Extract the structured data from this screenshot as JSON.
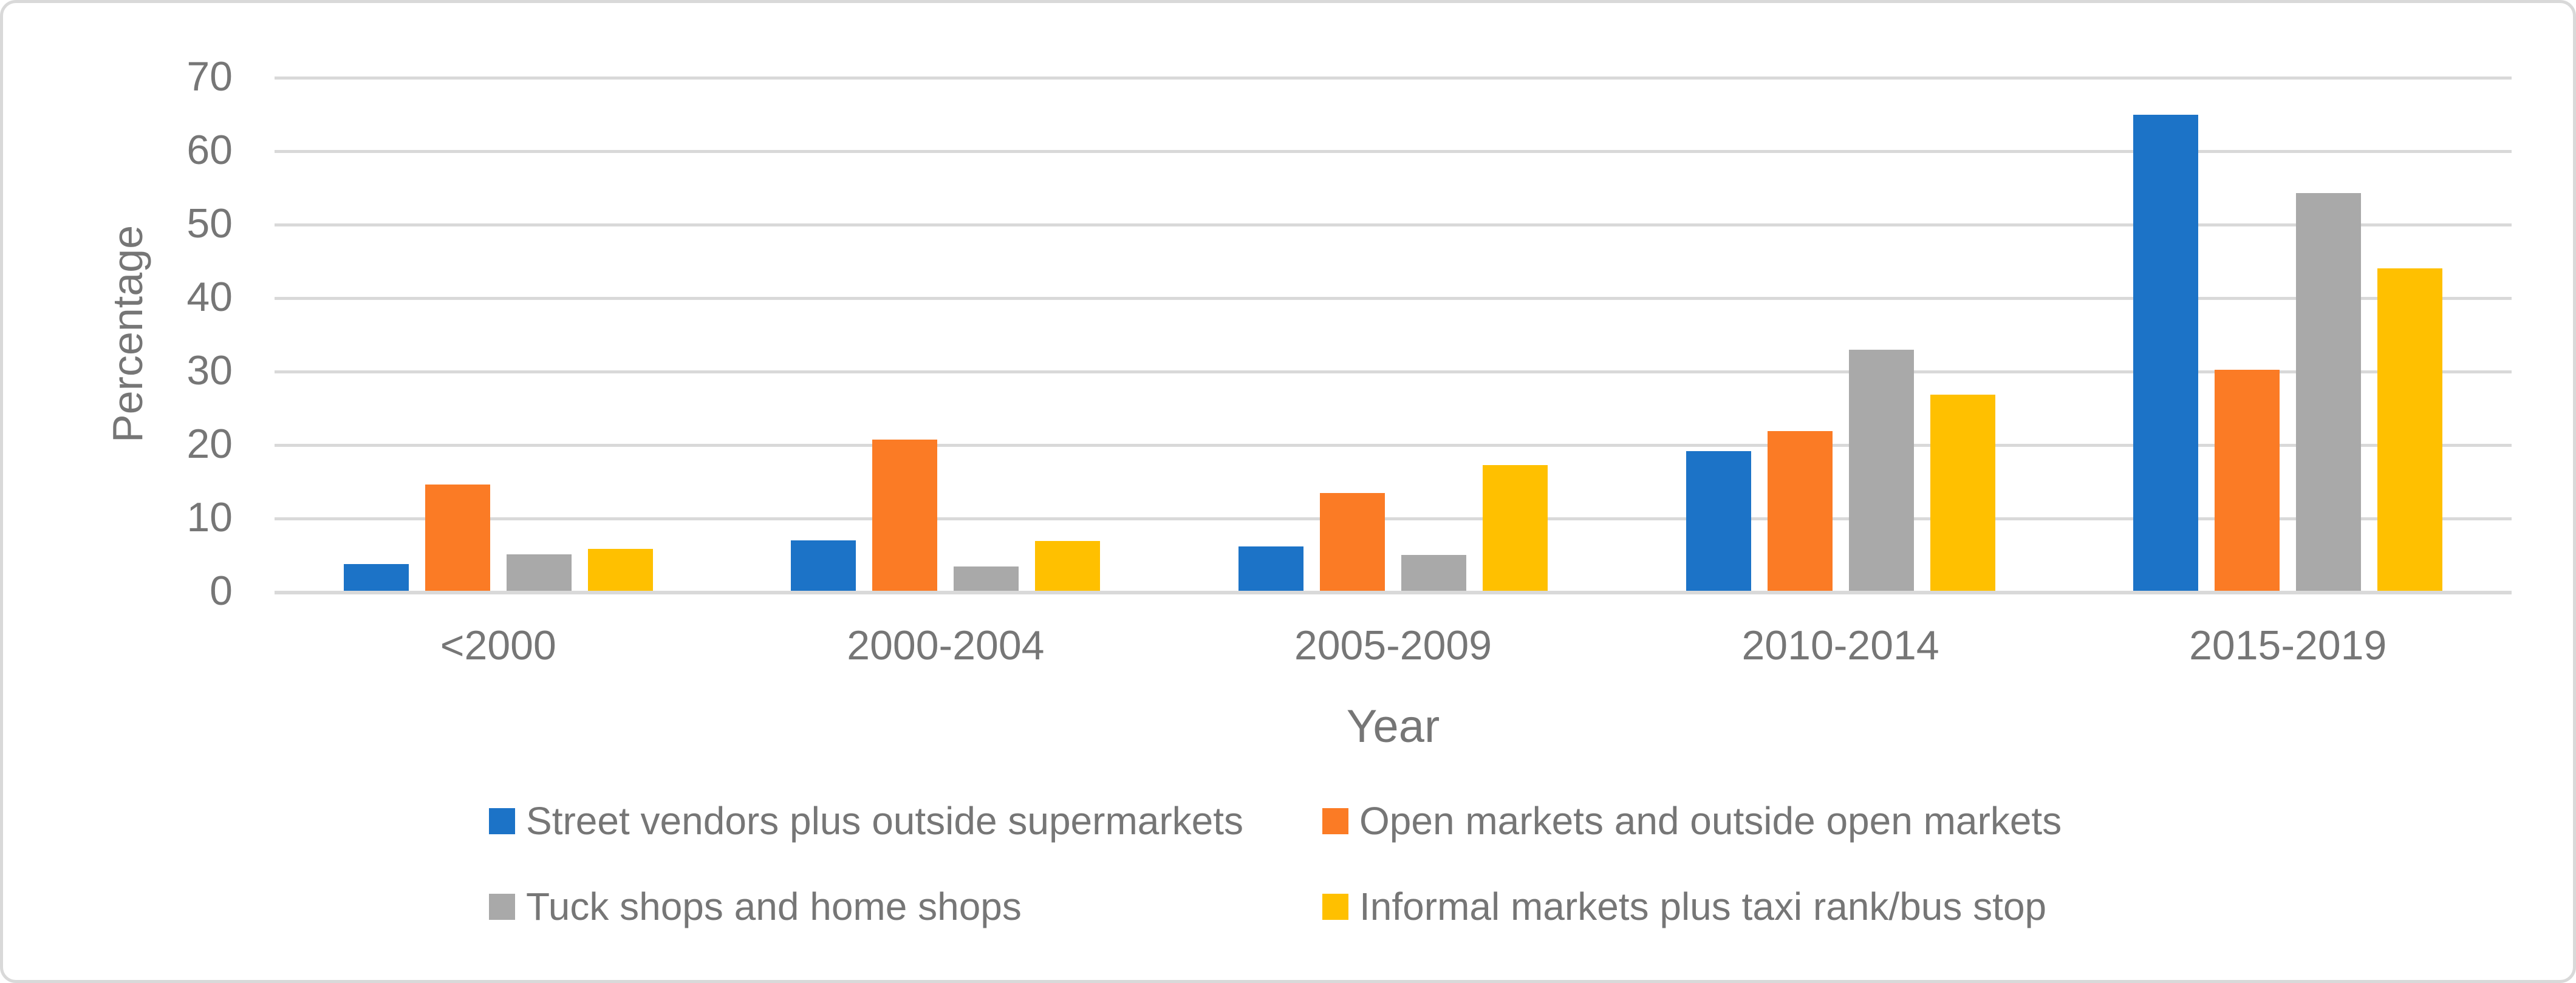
{
  "figure": {
    "background": "#ffffff",
    "border_color": "#d9d9d9",
    "text_color": "#767676",
    "gridline_color": "#d9d9d9"
  },
  "chart_data": {
    "type": "bar",
    "title": "",
    "xlabel": "Year",
    "ylabel": "Percentage",
    "ylim": [
      0,
      70
    ],
    "yticks": [
      0,
      10,
      20,
      30,
      40,
      50,
      60,
      70
    ],
    "grid": "horizontal",
    "legend_position": "bottom",
    "categories": [
      "<2000",
      "2000-2004",
      "2005-2009",
      "2010-2014",
      "2015-2019"
    ],
    "series": [
      {
        "name": "Street vendors plus outside supermarkets",
        "color": "#1c73c7",
        "values": [
          3.6,
          6.9,
          6.0,
          19.0,
          64.8
        ]
      },
      {
        "name": "Open markets and outside open markets",
        "color": "#fb7b25",
        "values": [
          14.5,
          20.6,
          13.3,
          21.7,
          30.1
        ]
      },
      {
        "name": "Tuck shops and home shops",
        "color": "#a9a9a9",
        "values": [
          5.0,
          3.3,
          4.9,
          32.8,
          54.1
        ]
      },
      {
        "name": "Informal markets plus taxi rank/bus stop",
        "color": "#ffc000",
        "values": [
          5.7,
          6.8,
          17.1,
          26.7,
          43.9
        ]
      }
    ],
    "legend_rows": [
      [
        0,
        1
      ],
      [
        2,
        3
      ]
    ]
  }
}
